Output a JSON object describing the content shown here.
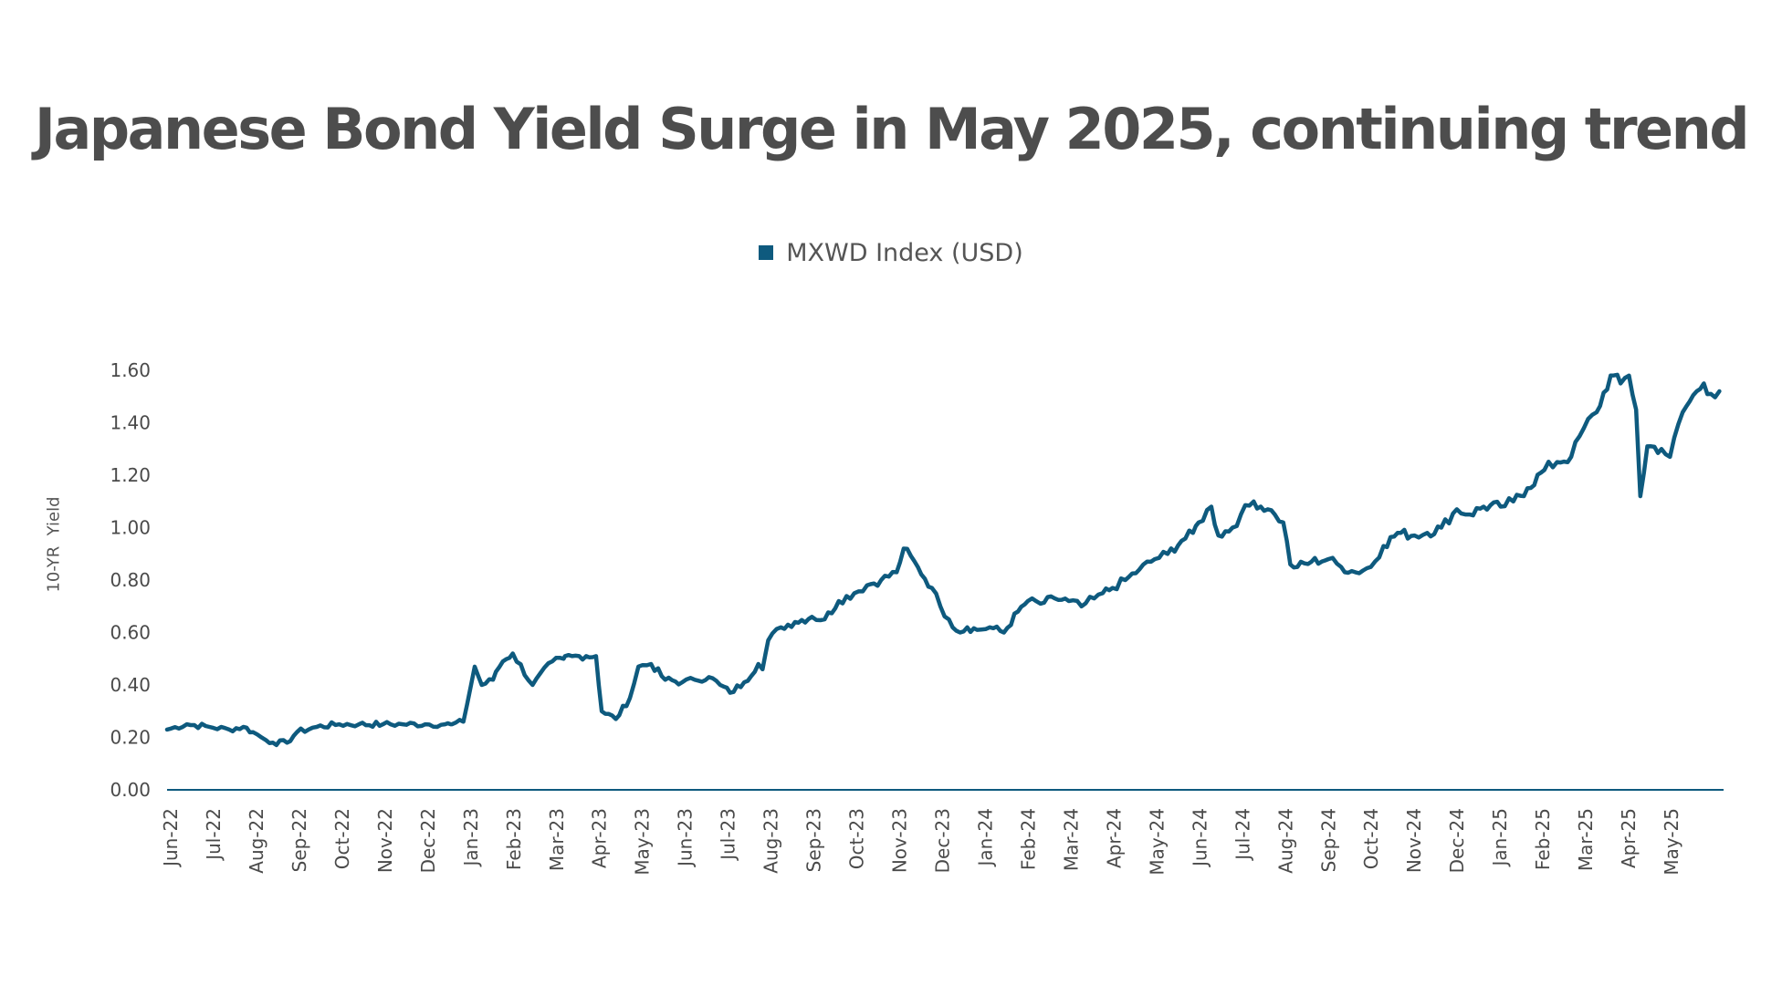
{
  "chart_data": {
    "type": "line",
    "title": "Japanese Bond Yield Surge in May 2025, continuing trend",
    "ylabel": "10-YR  Yield",
    "xlabel": "",
    "ylim": [
      0,
      1.6
    ],
    "yticks": [
      "0.00",
      "0.20",
      "0.40",
      "0.60",
      "0.80",
      "1.00",
      "1.20",
      "1.40",
      "1.60"
    ],
    "grid": false,
    "legend_position": "top-center",
    "x_tick_labels": [
      "Jun-22",
      "Jul-22",
      "Aug-22",
      "Sep-22",
      "Oct-22",
      "Nov-22",
      "Dec-22",
      "Jan-23",
      "Feb-23",
      "Mar-23",
      "Apr-23",
      "May-23",
      "Jun-23",
      "Jul-23",
      "Aug-23",
      "Sep-23",
      "Oct-23",
      "Nov-23",
      "Dec-23",
      "Jan-24",
      "Feb-24",
      "Mar-24",
      "Apr-24",
      "May-24",
      "Jun-24",
      "Jul-24",
      "Aug-24",
      "Sep-24",
      "Oct-24",
      "Nov-24",
      "Dec-24",
      "Jan-25",
      "Feb-25",
      "Mar-25",
      "Apr-25",
      "May-25"
    ],
    "series": [
      {
        "name": "MXWD Index (USD)",
        "color": "#0e5a7e",
        "x": [
          "2022-06-01",
          "2022-06-15",
          "2022-07-01",
          "2022-07-15",
          "2022-07-25",
          "2022-08-01",
          "2022-08-10",
          "2022-08-15",
          "2022-08-25",
          "2022-09-01",
          "2022-09-15",
          "2022-10-01",
          "2022-10-15",
          "2022-11-01",
          "2022-11-15",
          "2022-12-01",
          "2022-12-15",
          "2022-12-19",
          "2022-12-20",
          "2022-12-28",
          "2023-01-05",
          "2023-01-10",
          "2023-01-18",
          "2023-01-20",
          "2023-01-25",
          "2023-02-01",
          "2023-02-15",
          "2023-03-01",
          "2023-03-09",
          "2023-03-10",
          "2023-03-15",
          "2023-03-20",
          "2023-03-25",
          "2023-04-01",
          "2023-04-05",
          "2023-04-15",
          "2023-04-25",
          "2023-05-01",
          "2023-05-10",
          "2023-05-20",
          "2023-06-01",
          "2023-06-10",
          "2023-06-20",
          "2023-06-28",
          "2023-07-05",
          "2023-07-15",
          "2023-07-25",
          "2023-07-28",
          "2023-08-01",
          "2023-08-10",
          "2023-08-20",
          "2023-09-01",
          "2023-09-10",
          "2023-09-20",
          "2023-10-01",
          "2023-10-10",
          "2023-10-20",
          "2023-10-31",
          "2023-11-05",
          "2023-11-15",
          "2023-11-25",
          "2023-12-01",
          "2023-12-07",
          "2023-12-15",
          "2023-12-20",
          "2023-12-27",
          "2024-01-05",
          "2024-01-15",
          "2024-01-25",
          "2024-02-01",
          "2024-02-10",
          "2024-02-20",
          "2024-03-01",
          "2024-03-10",
          "2024-03-19",
          "2024-03-25",
          "2024-04-01",
          "2024-04-10",
          "2024-04-20",
          "2024-05-01",
          "2024-05-10",
          "2024-05-20",
          "2024-05-28",
          "2024-06-01",
          "2024-06-10",
          "2024-06-15",
          "2024-06-25",
          "2024-07-01",
          "2024-07-10",
          "2024-07-20",
          "2024-07-25",
          "2024-07-31",
          "2024-08-05",
          "2024-08-10",
          "2024-08-20",
          "2024-09-01",
          "2024-09-10",
          "2024-09-20",
          "2024-10-01",
          "2024-10-10",
          "2024-10-20",
          "2024-11-01",
          "2024-11-10",
          "2024-11-20",
          "2024-12-01",
          "2024-12-10",
          "2024-12-20",
          "2025-01-01",
          "2025-01-10",
          "2025-01-20",
          "2025-02-01",
          "2025-02-10",
          "2025-02-20",
          "2025-03-01",
          "2025-03-10",
          "2025-03-20",
          "2025-03-27",
          "2025-04-02",
          "2025-04-07",
          "2025-04-10",
          "2025-04-15",
          "2025-04-25",
          "2025-05-01",
          "2025-05-10",
          "2025-05-20",
          "2025-05-25",
          "2025-05-30",
          "2025-06-05"
        ],
        "y": [
          0.23,
          0.25,
          0.24,
          0.23,
          0.24,
          0.22,
          0.19,
          0.18,
          0.18,
          0.22,
          0.24,
          0.25,
          0.25,
          0.25,
          0.25,
          0.25,
          0.25,
          0.25,
          0.25,
          0.26,
          0.47,
          0.4,
          0.42,
          0.45,
          0.49,
          0.52,
          0.4,
          0.49,
          0.5,
          0.51,
          0.51,
          0.51,
          0.51,
          0.51,
          0.3,
          0.27,
          0.35,
          0.47,
          0.48,
          0.42,
          0.41,
          0.42,
          0.43,
          0.4,
          0.37,
          0.41,
          0.48,
          0.46,
          0.57,
          0.62,
          0.64,
          0.66,
          0.65,
          0.72,
          0.75,
          0.78,
          0.8,
          0.83,
          0.92,
          0.85,
          0.77,
          0.7,
          0.65,
          0.6,
          0.62,
          0.61,
          0.62,
          0.6,
          0.68,
          0.72,
          0.71,
          0.73,
          0.72,
          0.7,
          0.73,
          0.75,
          0.77,
          0.8,
          0.84,
          0.88,
          0.9,
          0.95,
          0.98,
          1.02,
          1.08,
          0.97,
          1.0,
          1.05,
          1.1,
          1.07,
          1.05,
          1.02,
          0.86,
          0.85,
          0.87,
          0.88,
          0.85,
          0.83,
          0.85,
          0.93,
          0.98,
          0.97,
          0.98,
          1.0,
          1.07,
          1.05,
          1.08,
          1.08,
          1.1,
          1.15,
          1.22,
          1.25,
          1.27,
          1.38,
          1.44,
          1.58,
          1.55,
          1.58,
          1.45,
          1.12,
          1.31,
          1.3,
          1.27,
          1.44,
          1.52,
          1.55,
          1.51,
          1.52
        ]
      }
    ]
  }
}
